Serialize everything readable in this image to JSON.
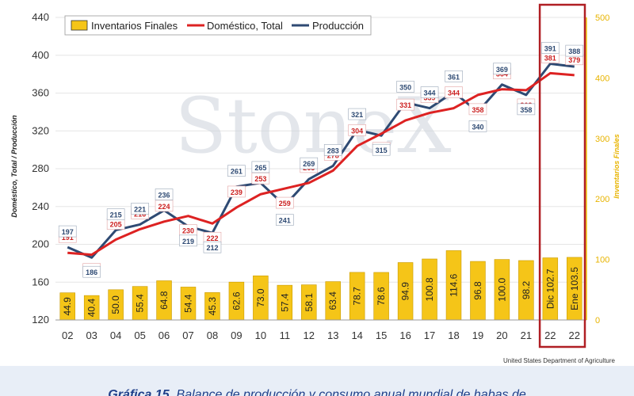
{
  "chart_data": {
    "type": "bar+line",
    "categories": [
      "02",
      "03",
      "04",
      "05",
      "06",
      "07",
      "08",
      "09",
      "10",
      "11",
      "12",
      "13",
      "14",
      "15",
      "16",
      "17",
      "18",
      "19",
      "20",
      "21",
      "22",
      "22"
    ],
    "bars": {
      "name": "Inventarios Finales",
      "values": [
        44.9,
        40.4,
        50.0,
        55.4,
        64.8,
        54.4,
        45.3,
        62.6,
        73.0,
        57.4,
        58.1,
        63.4,
        78.7,
        78.6,
        94.9,
        100.8,
        114.6,
        96.8,
        100.0,
        98.2,
        102.7,
        103.5
      ],
      "labels": [
        "44.9",
        "40.4",
        "50.0",
        "55.4",
        "64.8",
        "54.4",
        "45.3",
        "62.6",
        "73.0",
        "57.4",
        "58.1",
        "63.4",
        "78.7",
        "78.6",
        "94.9",
        "100.8",
        "114.6",
        "96.8",
        "100.0",
        "98.2",
        "Dic 102.7",
        "Ene 103.5"
      ],
      "color": "#f5c518"
    },
    "series": [
      {
        "name": "Doméstico, Total",
        "color": "#dd2222",
        "values": [
          191,
          189,
          205,
          216,
          224,
          230,
          222,
          239,
          253,
          259,
          265,
          278,
          304,
          317,
          331,
          339,
          344,
          358,
          364,
          363,
          381,
          379
        ]
      },
      {
        "name": "Producción",
        "color": "#2e4a73",
        "values": [
          197,
          186,
          215,
          221,
          236,
          219,
          212,
          261,
          265,
          241,
          269,
          283,
          321,
          315,
          350,
          344,
          361,
          340,
          369,
          358,
          391,
          388
        ]
      }
    ],
    "y_left": {
      "label": "Doméstico, Total / Producción",
      "ticks": [
        120,
        160,
        200,
        240,
        280,
        320,
        360,
        400,
        440
      ],
      "ylim": [
        120,
        440
      ]
    },
    "y_right": {
      "label": "Inventarios Finales",
      "ticks": [
        0,
        100,
        200,
        300,
        400,
        500
      ],
      "ylim": [
        0,
        500
      ]
    },
    "legend": "top-left",
    "grid": "horizontal"
  },
  "watermark": "StoneX",
  "source": "United States Department of Agriculture",
  "caption": {
    "bold": "Gráfica 15.",
    "text": "Balance de producción y consumo anual mundial de habas de"
  },
  "colors": {
    "highlight_box": "#b01f24",
    "caption_background": "#e8eef7",
    "caption_text": "#1f3f8a"
  }
}
